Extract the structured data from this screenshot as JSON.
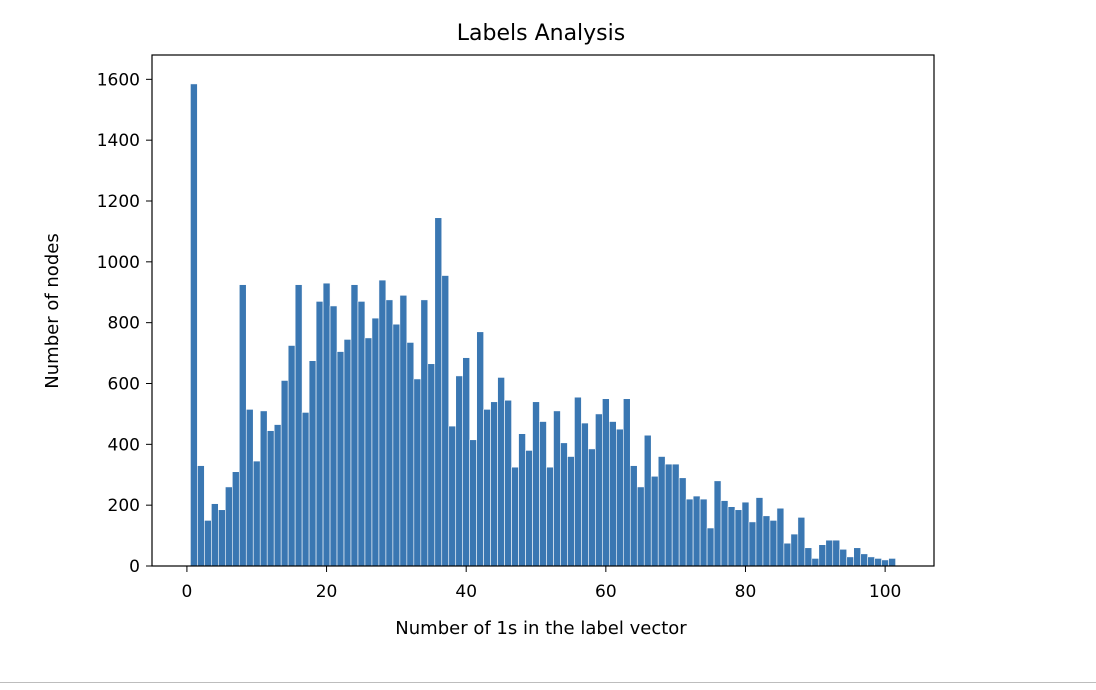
{
  "chart_data": {
    "type": "bar",
    "title": "Labels Analysis",
    "xlabel": "Number of 1s in the label vector",
    "ylabel": "Number of nodes",
    "xlim": [
      -5,
      107
    ],
    "ylim": [
      0,
      1680
    ],
    "x_ticks": [
      0,
      20,
      40,
      60,
      80,
      100
    ],
    "y_ticks": [
      0,
      200,
      400,
      600,
      800,
      1000,
      1200,
      1400,
      1600
    ],
    "bar_color": "#3a77b2",
    "grid": false,
    "x": [
      1,
      2,
      3,
      4,
      5,
      6,
      7,
      8,
      9,
      10,
      11,
      12,
      13,
      14,
      15,
      16,
      17,
      18,
      19,
      20,
      21,
      22,
      23,
      24,
      25,
      26,
      27,
      28,
      29,
      30,
      31,
      32,
      33,
      34,
      35,
      36,
      37,
      38,
      39,
      40,
      41,
      42,
      43,
      44,
      45,
      46,
      47,
      48,
      49,
      50,
      51,
      52,
      53,
      54,
      55,
      56,
      57,
      58,
      59,
      60,
      61,
      62,
      63,
      64,
      65,
      66,
      67,
      68,
      69,
      70,
      71,
      72,
      73,
      74,
      75,
      76,
      77,
      78,
      79,
      80,
      81,
      82,
      83,
      84,
      85,
      86,
      87,
      88,
      89,
      90,
      91,
      92,
      93,
      94,
      95,
      96,
      97,
      98,
      99,
      100,
      101
    ],
    "values": [
      1585,
      330,
      150,
      205,
      185,
      260,
      310,
      925,
      515,
      345,
      510,
      445,
      465,
      610,
      725,
      925,
      505,
      675,
      870,
      930,
      855,
      705,
      745,
      925,
      870,
      750,
      815,
      940,
      875,
      795,
      890,
      735,
      615,
      875,
      665,
      1145,
      955,
      460,
      625,
      685,
      415,
      770,
      515,
      540,
      620,
      545,
      325,
      435,
      380,
      540,
      475,
      325,
      510,
      405,
      360,
      555,
      470,
      385,
      500,
      550,
      475,
      450,
      550,
      330,
      260,
      430,
      295,
      360,
      335,
      335,
      290,
      220,
      230,
      220,
      125,
      280,
      215,
      195,
      185,
      210,
      145,
      225,
      165,
      150,
      190,
      75,
      105,
      160,
      60,
      25,
      70,
      85,
      85,
      55,
      30,
      60,
      40,
      30,
      25,
      20,
      25
    ]
  }
}
